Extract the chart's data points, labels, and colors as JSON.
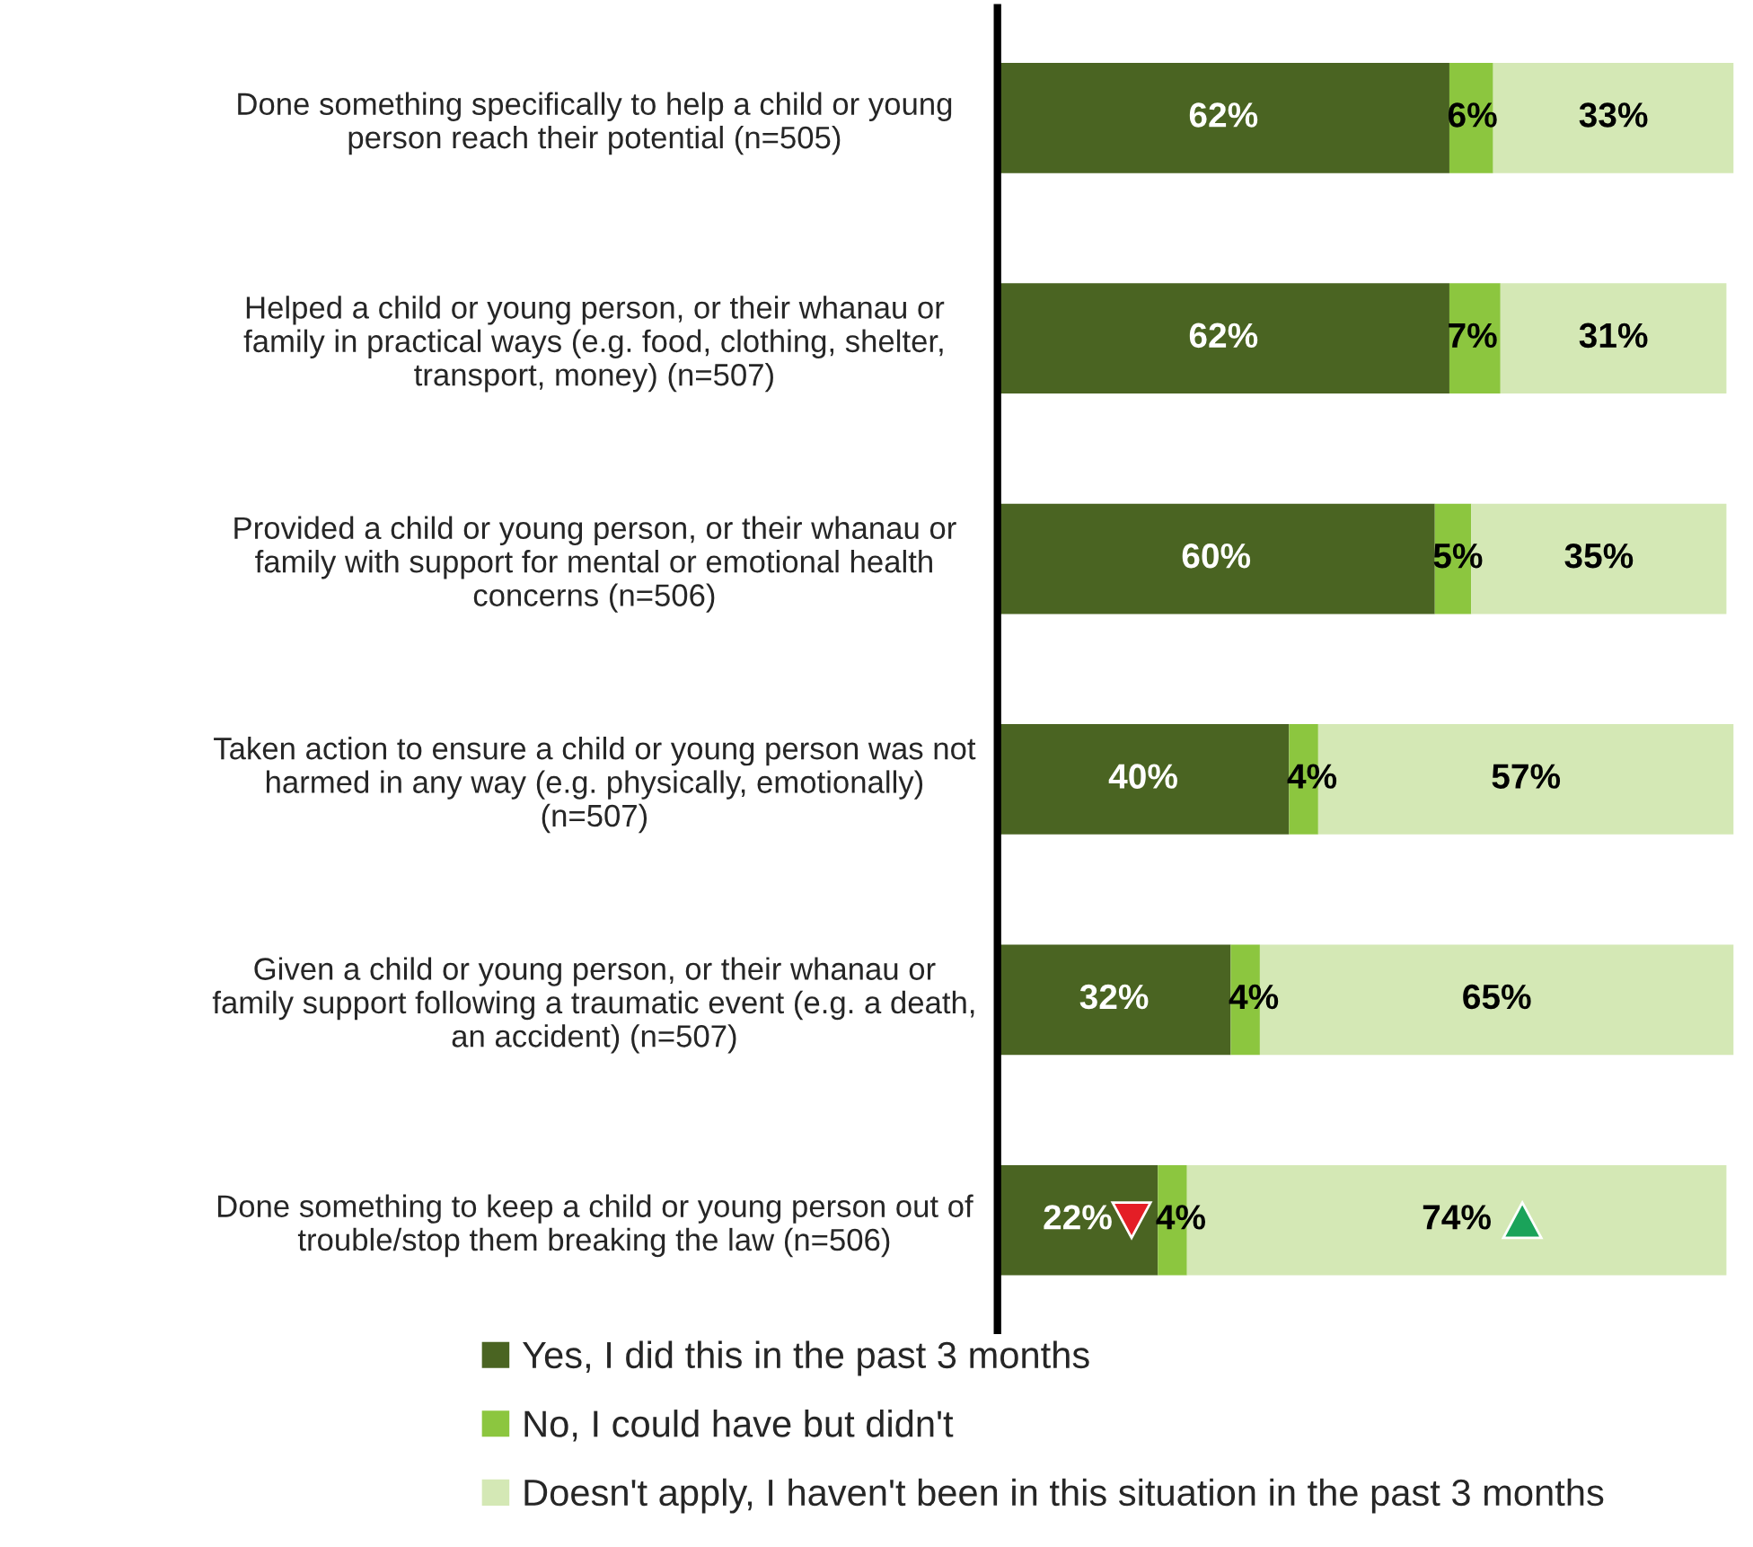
{
  "chart_data": {
    "type": "bar",
    "orientation": "horizontal",
    "stacked": true,
    "tick_labels": "y",
    "legend": "bottom",
    "grid": false,
    "xlim": [
      0,
      101
    ],
    "categories": [
      "Done something specifically to help a child or young\nperson reach their potential (n=505)",
      "Helped a child or young person, or their whanau or\nfamily in practical ways (e.g. food, clothing, shelter,\ntransport, money) (n=507)",
      "Provided a child or young person, or their whanau or\nfamily with support for mental or emotional health\nconcerns (n=506)",
      "Taken action to ensure a child or young person was not\nharmed in any way (e.g. physically, emotionally)\n(n=507)",
      "Given a child or young person, or their whanau or\nfamily support following a traumatic event (e.g. a death,\nan accident) (n=507)",
      "Done something to keep a child or young person out of\ntrouble/stop them breaking the law (n=506)"
    ],
    "series": [
      {
        "name": "Yes, I did this in the past 3 months",
        "color": "#4a6422",
        "values": [
          62,
          62,
          60,
          40,
          32,
          22
        ],
        "value_labels": [
          "62%",
          "62%",
          "60%",
          "40%",
          "32%",
          "22%"
        ]
      },
      {
        "name": "No, I could have but didn't",
        "color": "#8cc63f",
        "values": [
          6,
          7,
          5,
          4,
          4,
          4
        ],
        "value_labels": [
          "6%",
          "7%",
          "5%",
          "4%",
          "4%",
          "4%"
        ]
      },
      {
        "name": "Doesn't apply, I haven't been in this situation in the past 3 months",
        "color": "#d4e8b5",
        "values": [
          33,
          31,
          35,
          57,
          65,
          74
        ],
        "value_labels": [
          "33%",
          "31%",
          "35%",
          "57%",
          "65%",
          "74%"
        ]
      }
    ]
  }
}
